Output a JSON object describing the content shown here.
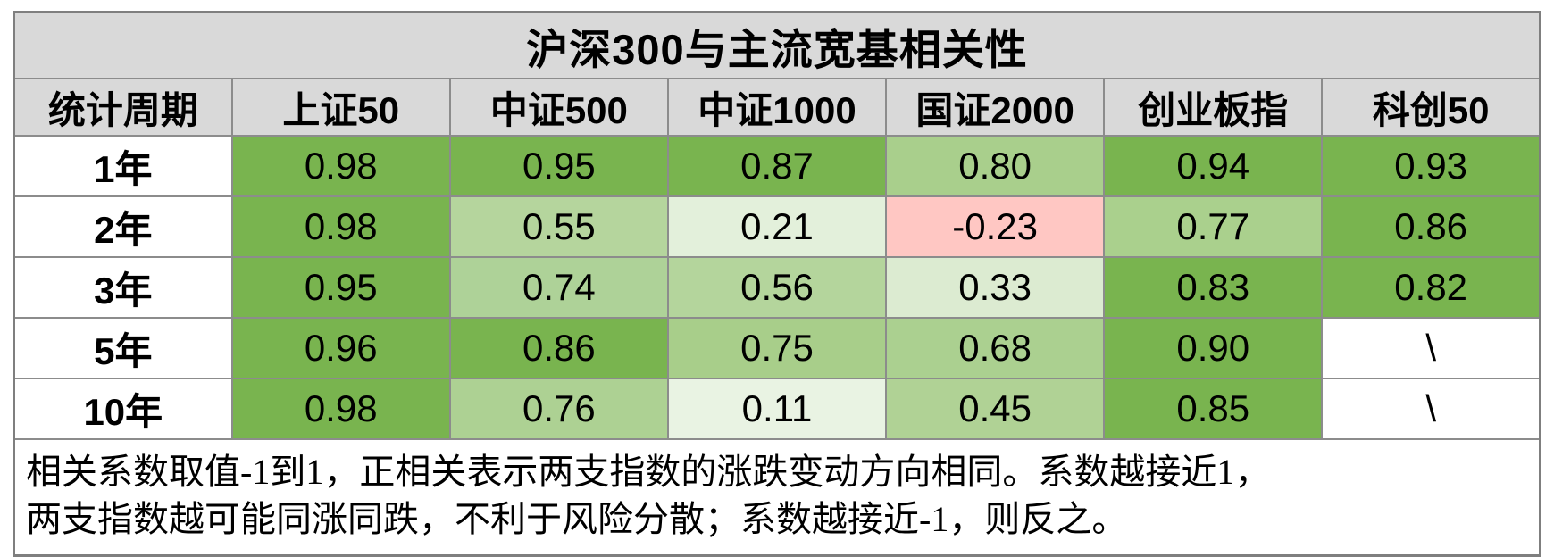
{
  "title": "沪深300与主流宽基相关性",
  "chart_data": {
    "type": "table",
    "title": "沪深300与主流宽基相关性",
    "row_header_label": "统计周期",
    "columns": [
      "统计周期",
      "上证50",
      "中证500",
      "中证1000",
      "国证2000",
      "创业板指",
      "科创50"
    ],
    "rows": [
      {
        "period": "1年",
        "values": [
          "0.98",
          "0.95",
          "0.87",
          "0.80",
          "0.94",
          "0.93"
        ],
        "cell_colors": [
          "#79b44f",
          "#79b44f",
          "#79b44f",
          "#a9cf8c",
          "#79b44f",
          "#79b44f"
        ]
      },
      {
        "period": "2年",
        "values": [
          "0.98",
          "0.55",
          "0.21",
          "-0.23",
          "0.77",
          "0.86"
        ],
        "cell_colors": [
          "#79b44f",
          "#b5d59d",
          "#e3f0db",
          "#ffc7c3",
          "#aad08d",
          "#79b44f"
        ]
      },
      {
        "period": "3年",
        "values": [
          "0.95",
          "0.74",
          "0.56",
          "0.33",
          "0.83",
          "0.82"
        ],
        "cell_colors": [
          "#79b44f",
          "#aed298",
          "#b4d59c",
          "#dcebd1",
          "#79b44f",
          "#79b44f"
        ]
      },
      {
        "period": "5年",
        "values": [
          "0.96",
          "0.86",
          "0.75",
          "0.68",
          "0.90",
          "\\"
        ],
        "cell_colors": [
          "#79b44f",
          "#79b44f",
          "#a8ce8a",
          "#abd090",
          "#79b44f",
          "#ffffff"
        ]
      },
      {
        "period": "10年",
        "values": [
          "0.98",
          "0.76",
          "0.11",
          "0.45",
          "0.85",
          "\\"
        ],
        "cell_colors": [
          "#79b44f",
          "#add193",
          "#e9f3e3",
          "#b0d295",
          "#79b44f",
          "#ffffff"
        ]
      }
    ],
    "footnote_lines": [
      "相关系数取值-1到1，正相关表示两支指数的涨跌变动方向相同。系数越接近1，",
      "两支指数越可能同涨同跌，不利于风险分散；系数越接近-1，则反之。"
    ]
  },
  "colors": {
    "header_bg": "#d9d9d9",
    "border": "#8c8c8c",
    "outer_border": "#7f7f7f",
    "strong_positive_green": "#79b44f",
    "weak_positive_light_green": "#e3f0db",
    "negative_pink": "#ffc7c3",
    "text": "#000000"
  }
}
